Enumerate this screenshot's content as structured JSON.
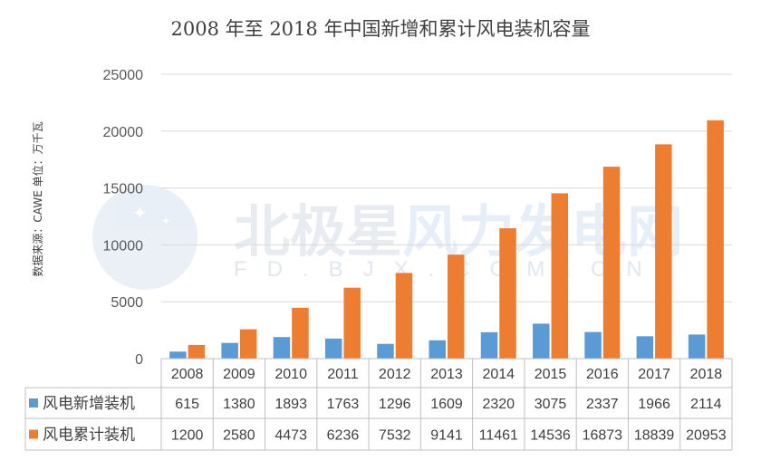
{
  "chart_data": {
    "type": "bar",
    "title": "2008 年至 2018 年中国新增和累计风电装机容量",
    "ylabel": "数据来源：CAWE   单位：万千瓦",
    "ylim": [
      0,
      25000
    ],
    "yticks": [
      "0",
      "5000",
      "10000",
      "15000",
      "20000",
      "25000"
    ],
    "grid": true,
    "categories": [
      "2008",
      "2009",
      "2010",
      "2011",
      "2012",
      "2013",
      "2014",
      "2015",
      "2016",
      "2017",
      "2018"
    ],
    "series": [
      {
        "name": "风电新增装机",
        "color": "#5b9bd5",
        "values": [
          615,
          1380,
          1893,
          1763,
          1296,
          1609,
          2320,
          3075,
          2337,
          1966,
          2114
        ]
      },
      {
        "name": "风电累计装机",
        "color": "#ed7d31",
        "values": [
          1200,
          2580,
          4473,
          6236,
          7532,
          9141,
          11461,
          14536,
          16873,
          18839,
          20953
        ]
      }
    ],
    "data_table": true
  },
  "watermark": {
    "text_cn": "北极星风力发电网",
    "text_en": "FD.BJX.COM.CN"
  }
}
